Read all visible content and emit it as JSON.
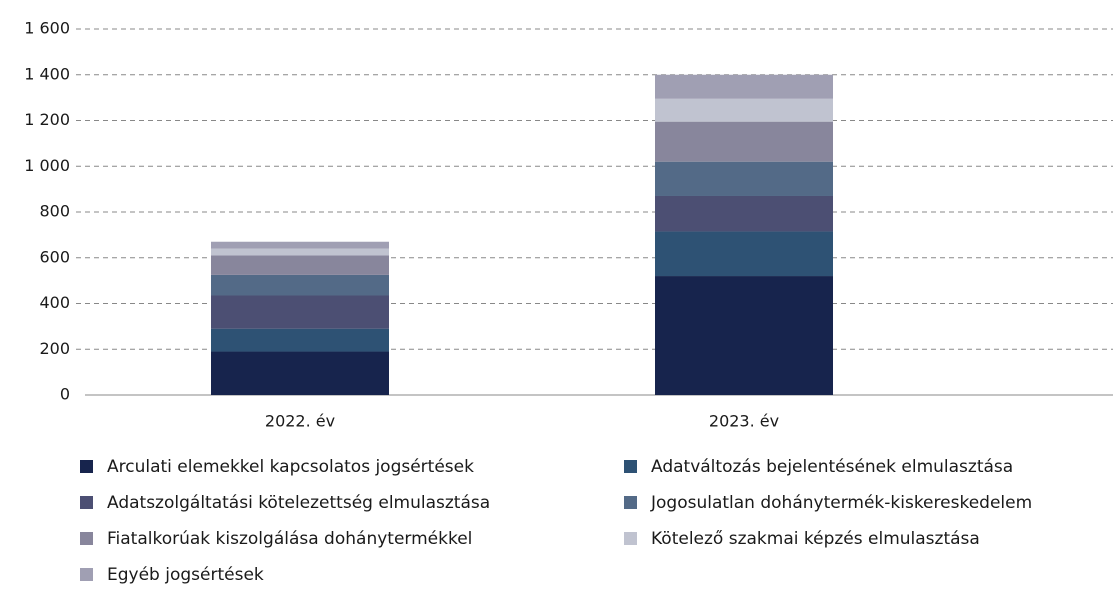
{
  "chart_data": {
    "type": "stacked_bar",
    "categories": [
      "2022. év",
      "2023. év"
    ],
    "series": [
      {
        "name": "Arculati elemekkel kapcsolatos jogsértések",
        "color": "#17244d",
        "values": [
          190,
          520
        ]
      },
      {
        "name": "Adatváltozás bejelentésének elmulasztása",
        "color": "#2e5274",
        "values": [
          100,
          195
        ]
      },
      {
        "name": "Adatszolgáltatási kötelezettség elmulasztása",
        "color": "#4c4f73",
        "values": [
          145,
          155
        ]
      },
      {
        "name": "Jogosulatlan dohánytermék-kiskereskedelem",
        "color": "#536a87",
        "values": [
          90,
          150
        ]
      },
      {
        "name": "Fiatalkorúak kiszolgálása dohánytermékkel",
        "color": "#88869c",
        "values": [
          85,
          175
        ]
      },
      {
        "name": "Kötelező szakmai képzés elmulasztása",
        "color": "#c0c3d0",
        "values": [
          30,
          100
        ]
      },
      {
        "name": "Egyéb jogsértések",
        "color": "#a09fb3",
        "values": [
          30,
          105
        ]
      }
    ],
    "ylim": [
      0,
      1600
    ],
    "yticks": [
      0,
      200,
      400,
      600,
      800,
      {
        "value": 1000,
        "label": "1 000"
      },
      {
        "value": 1200,
        "label": "1 200"
      },
      {
        "value": 1400,
        "label": "1 400"
      },
      {
        "value": 1600,
        "label": "1 600"
      }
    ],
    "grid": true
  }
}
